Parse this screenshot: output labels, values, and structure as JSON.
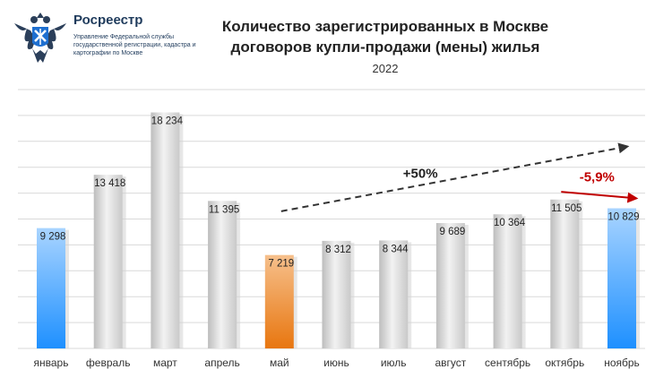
{
  "header": {
    "org_name": "Росреестр",
    "org_desc": "Управление Федеральной службы государственной регистрации, кадастра и картографии по Москве",
    "title_line1": "Количество зарегистрированных в Москве",
    "title_line2": "договоров купли-продажи (мены) жилья",
    "subtitle": "2022"
  },
  "chart_data": {
    "type": "bar",
    "categories": [
      "январь",
      "февраль",
      "март",
      "апрель",
      "май",
      "июнь",
      "июль",
      "август",
      "сентябрь",
      "октябрь",
      "ноябрь"
    ],
    "values": [
      9298,
      13418,
      18234,
      11395,
      7219,
      8312,
      8344,
      9689,
      10364,
      11505,
      10829
    ],
    "value_labels": [
      "9 298",
      "13 418",
      "18 234",
      "11 395",
      "7 219",
      "8 312",
      "8 344",
      "9 689",
      "10 364",
      "11 505",
      "10 829"
    ],
    "bar_colors": [
      "blue",
      "gray",
      "gray",
      "gray",
      "orange",
      "gray",
      "gray",
      "gray",
      "gray",
      "gray",
      "blue"
    ],
    "ylim": [
      0,
      20000
    ],
    "grid": true,
    "annotations": [
      {
        "text": "+50%",
        "color": "#222222",
        "arrow": "dashed trend line from май to ноябрь"
      },
      {
        "text": "-5,9%",
        "color": "#c00000",
        "arrow": "red arrow from октябрь to ноябрь"
      }
    ]
  },
  "colors": {
    "gray_bar": "#cfcfcf",
    "blue_bar": "#1e90ff",
    "orange_bar": "#e8760f",
    "grid": "#d9d9d9",
    "accent_red": "#c00000"
  }
}
